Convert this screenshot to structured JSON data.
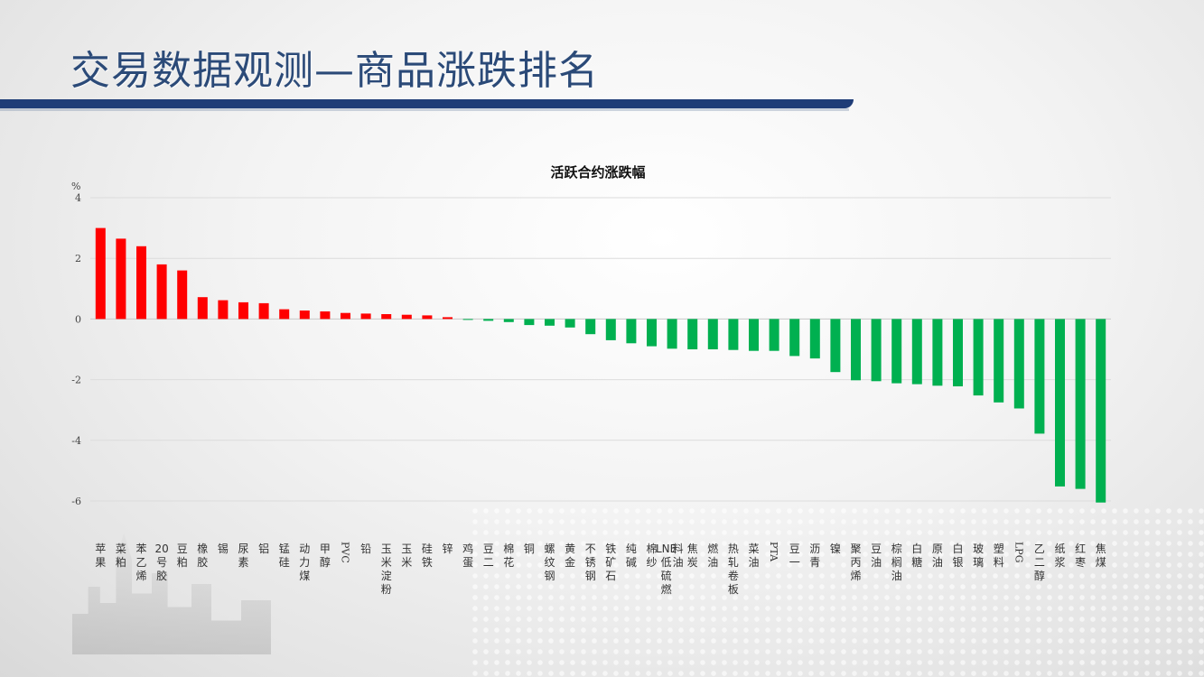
{
  "slide": {
    "title": "交易数据观测—商品涨跌排名",
    "brand_color": "#1f3d77"
  },
  "chart_data": {
    "type": "bar",
    "title": "活跃合约涨跌幅",
    "ylabel": "%",
    "ylim": [
      -6,
      4
    ],
    "yticks": [
      4,
      2,
      0,
      -2,
      -4,
      -6
    ],
    "grid": true,
    "positive_color": "#ff0000",
    "negative_color": "#00b050",
    "categories": [
      "苹果",
      "菜粕",
      "苯乙烯",
      "20号胶",
      "豆粕",
      "橡胶",
      "锡",
      "尿素",
      "铝",
      "锰硅",
      "动力煤",
      "甲醇",
      "PVC",
      "铅",
      "玉米淀粉",
      "玉米",
      "硅铁",
      "锌",
      "鸡蛋",
      "豆二",
      "棉花",
      "铜",
      "螺纹钢",
      "黄金",
      "不锈钢",
      "铁矿石",
      "纯碱",
      "棉纱",
      "LNE低硫燃料油",
      "焦炭",
      "燃油",
      "热轧卷板",
      "菜油",
      "PTA",
      "豆一",
      "沥青",
      "镍",
      "聚丙烯",
      "豆油",
      "棕榈油",
      "白糖",
      "原油",
      "白银",
      "玻璃",
      "塑料",
      "LPG",
      "乙二醇",
      "纸浆",
      "红枣",
      "焦煤"
    ],
    "values": [
      3.0,
      2.65,
      2.4,
      1.8,
      1.6,
      0.72,
      0.62,
      0.55,
      0.52,
      0.32,
      0.28,
      0.25,
      0.2,
      0.18,
      0.16,
      0.14,
      0.12,
      0.06,
      -0.03,
      -0.06,
      -0.1,
      -0.2,
      -0.22,
      -0.28,
      -0.5,
      -0.7,
      -0.8,
      -0.9,
      -0.98,
      -1.0,
      -1.0,
      -1.02,
      -1.05,
      -1.05,
      -1.22,
      -1.3,
      -1.75,
      -2.02,
      -2.05,
      -2.12,
      -2.15,
      -2.2,
      -2.22,
      -2.52,
      -2.75,
      -2.95,
      -3.78,
      -5.52,
      -5.6,
      -6.05
    ]
  }
}
